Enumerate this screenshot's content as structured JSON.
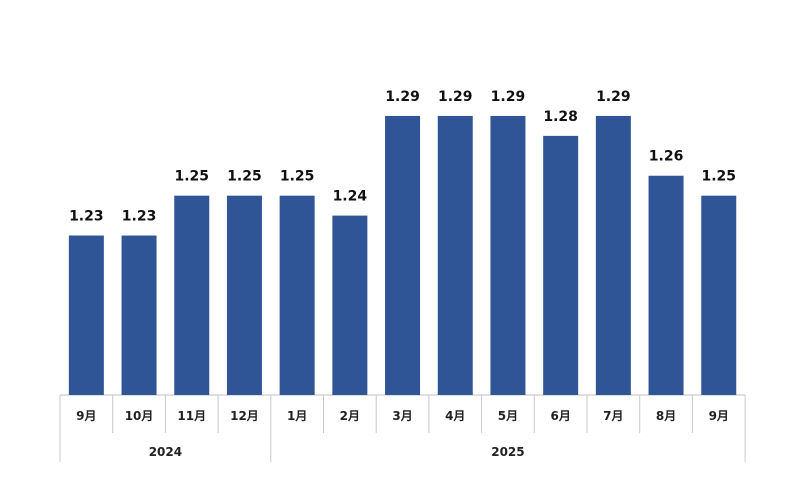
{
  "chart_data": {
    "type": "bar",
    "categories": [
      "9月",
      "10月",
      "11月",
      "12月",
      "1月",
      "2月",
      "3月",
      "4月",
      "5月",
      "6月",
      "7月",
      "8月",
      "9月"
    ],
    "values": [
      1.23,
      1.23,
      1.25,
      1.25,
      1.25,
      1.24,
      1.29,
      1.29,
      1.29,
      1.28,
      1.29,
      1.26,
      1.25
    ],
    "value_labels": [
      "1.23",
      "1.23",
      "1.25",
      "1.25",
      "1.25",
      "1.24",
      "1.29",
      "1.29",
      "1.29",
      "1.28",
      "1.29",
      "1.26",
      "1.25"
    ],
    "groups": [
      {
        "label": "2024",
        "count": 4
      },
      {
        "label": "2025",
        "count": 9
      }
    ],
    "title": "",
    "xlabel": "",
    "ylabel": "",
    "ylim": [
      1.15,
      1.3
    ],
    "grid": false,
    "colors": {
      "bar": "#2f5597"
    }
  }
}
